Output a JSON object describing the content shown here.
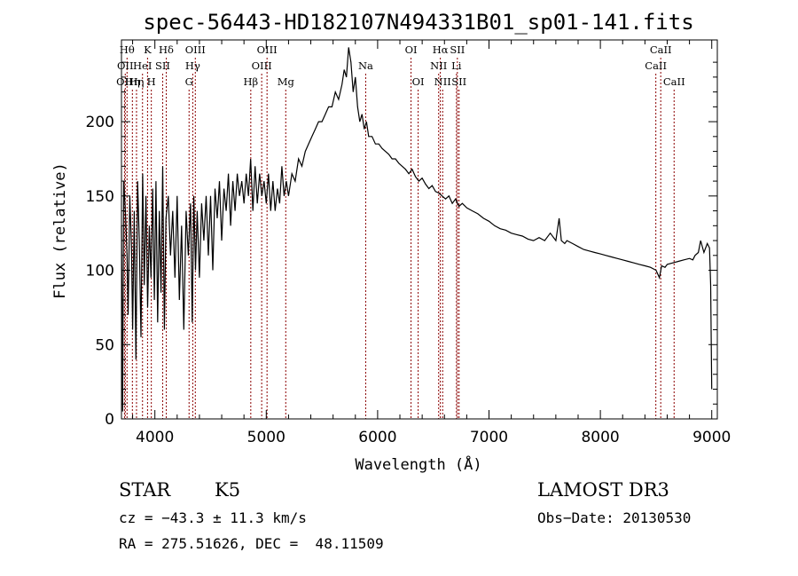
{
  "chart_data": {
    "type": "line",
    "title": "spec-56443-HD182107N494331B01_sp01-141.fits",
    "xlabel": "Wavelength (Å)",
    "ylabel": "Flux (relative)",
    "xlim": [
      3700,
      9050
    ],
    "ylim": [
      0,
      255
    ],
    "xticks": [
      4000,
      5000,
      6000,
      7000,
      8000,
      9000
    ],
    "yticks": [
      0,
      50,
      100,
      150,
      200
    ],
    "series": [
      {
        "x": [
          3700,
          3710,
          3720,
          3735,
          3750,
          3760,
          3775,
          3790,
          3800,
          3815,
          3830,
          3845,
          3860,
          3875,
          3890,
          3905,
          3920,
          3935,
          3950,
          3965,
          3980,
          3995,
          4010,
          4025,
          4040,
          4055,
          4070,
          4085,
          4100,
          4120,
          4140,
          4160,
          4180,
          4200,
          4220,
          4240,
          4260,
          4280,
          4300,
          4320,
          4335,
          4350,
          4365,
          4380,
          4400,
          4420,
          4440,
          4460,
          4480,
          4500,
          4520,
          4540,
          4560,
          4580,
          4600,
          4620,
          4640,
          4660,
          4680,
          4700,
          4720,
          4740,
          4760,
          4780,
          4800,
          4820,
          4840,
          4860,
          4880,
          4900,
          4920,
          4940,
          4960,
          4980,
          5000,
          5020,
          5040,
          5060,
          5080,
          5100,
          5120,
          5140,
          5160,
          5180,
          5200,
          5230,
          5260,
          5290,
          5320,
          5350,
          5380,
          5410,
          5440,
          5470,
          5500,
          5530,
          5560,
          5590,
          5620,
          5650,
          5680,
          5700,
          5720,
          5740,
          5760,
          5780,
          5800,
          5820,
          5840,
          5860,
          5880,
          5900,
          5920,
          5950,
          5980,
          6010,
          6040,
          6070,
          6100,
          6130,
          6160,
          6190,
          6220,
          6250,
          6280,
          6310,
          6340,
          6370,
          6400,
          6430,
          6460,
          6490,
          6520,
          6550,
          6580,
          6610,
          6640,
          6670,
          6700,
          6730,
          6760,
          6800,
          6850,
          6900,
          6950,
          7000,
          7050,
          7100,
          7150,
          7200,
          7250,
          7300,
          7350,
          7400,
          7450,
          7500,
          7550,
          7600,
          7630,
          7650,
          7680,
          7700,
          7750,
          7800,
          7850,
          7900,
          7950,
          8000,
          8050,
          8100,
          8150,
          8200,
          8250,
          8300,
          8350,
          8400,
          8450,
          8500,
          8530,
          8550,
          8580,
          8600,
          8650,
          8700,
          8750,
          8800,
          8830,
          8850,
          8880,
          8900,
          8930,
          8960,
          8980,
          8990,
          9000
        ],
        "y": [
          130,
          5,
          160,
          140,
          110,
          70,
          150,
          115,
          60,
          140,
          40,
          160,
          120,
          55,
          165,
          90,
          150,
          75,
          130,
          95,
          155,
          80,
          160,
          65,
          140,
          85,
          170,
          60,
          135,
          150,
          110,
          140,
          95,
          150,
          80,
          130,
          60,
          140,
          110,
          145,
          65,
          150,
          100,
          140,
          95,
          145,
          120,
          150,
          110,
          150,
          100,
          155,
          135,
          160,
          120,
          155,
          140,
          165,
          130,
          160,
          140,
          165,
          150,
          160,
          145,
          165,
          150,
          175,
          140,
          170,
          145,
          165,
          150,
          160,
          145,
          165,
          140,
          160,
          140,
          155,
          145,
          170,
          150,
          160,
          150,
          165,
          160,
          175,
          170,
          180,
          185,
          190,
          195,
          200,
          200,
          205,
          210,
          210,
          220,
          215,
          225,
          235,
          230,
          250,
          240,
          220,
          230,
          210,
          200,
          205,
          195,
          200,
          190,
          190,
          185,
          185,
          182,
          180,
          178,
          175,
          175,
          172,
          170,
          168,
          165,
          168,
          163,
          160,
          162,
          158,
          155,
          157,
          153,
          152,
          150,
          148,
          150,
          145,
          148,
          143,
          145,
          142,
          140,
          138,
          135,
          133,
          130,
          128,
          127,
          125,
          124,
          123,
          121,
          120,
          122,
          120,
          125,
          120,
          135,
          120,
          118,
          120,
          118,
          116,
          114,
          113,
          112,
          111,
          110,
          109,
          108,
          107,
          106,
          105,
          104,
          103,
          102,
          100,
          95,
          103,
          102,
          104,
          105,
          106,
          107,
          108,
          107,
          110,
          112,
          120,
          112,
          118,
          115,
          90,
          20
        ]
      }
    ],
    "lines": [
      {
        "x": 3734,
        "label": "OII",
        "row": 1
      },
      {
        "x": 3750,
        "label": "Hθ",
        "row": 0
      },
      {
        "x": 3727,
        "label": "OII",
        "row": 2
      },
      {
        "x": 3798,
        "label": "Hη",
        "row": 2
      },
      {
        "x": 3835,
        "label": "Hη",
        "row": 2
      },
      {
        "x": 3889,
        "label": "HeI",
        "row": 1
      },
      {
        "x": 3934,
        "label": "K",
        "row": 0
      },
      {
        "x": 3968,
        "label": "H",
        "row": 2
      },
      {
        "x": 4070,
        "label": "SII",
        "row": 1
      },
      {
        "x": 4102,
        "label": "Hδ",
        "row": 0
      },
      {
        "x": 4307,
        "label": "G",
        "row": 2
      },
      {
        "x": 4340,
        "label": "Hγ",
        "row": 1
      },
      {
        "x": 4363,
        "label": "OIII",
        "row": 0
      },
      {
        "x": 4861,
        "label": "Hβ",
        "row": 2
      },
      {
        "x": 4959,
        "label": "OIII",
        "row": 1
      },
      {
        "x": 5007,
        "label": "OIII",
        "row": 0
      },
      {
        "x": 5175,
        "label": "Mg",
        "row": 2
      },
      {
        "x": 5893,
        "label": "Na",
        "row": 1
      },
      {
        "x": 6300,
        "label": "OI",
        "row": 0
      },
      {
        "x": 6364,
        "label": "OI",
        "row": 2
      },
      {
        "x": 6548,
        "label": "NII",
        "row": 1
      },
      {
        "x": 6563,
        "label": "Hα",
        "row": 0
      },
      {
        "x": 6584,
        "label": "NII",
        "row": 2
      },
      {
        "x": 6708,
        "label": "Li",
        "row": 1
      },
      {
        "x": 6716,
        "label": "SII",
        "row": 0
      },
      {
        "x": 6731,
        "label": "SII",
        "row": 2
      },
      {
        "x": 8498,
        "label": "CaII",
        "row": 1
      },
      {
        "x": 8542,
        "label": "CaII",
        "row": 0
      },
      {
        "x": 8662,
        "label": "CaII",
        "row": 2
      }
    ],
    "line_color": "#8b0000"
  },
  "info": {
    "class": "STAR",
    "subclass": "K5",
    "survey": "LAMOST DR3",
    "cz": "cz = −43.3 ± 11.3 km/s",
    "obs_date": "Obs−Date: 20130530",
    "coords": "RA = 275.51626, DEC =  48.11509"
  }
}
